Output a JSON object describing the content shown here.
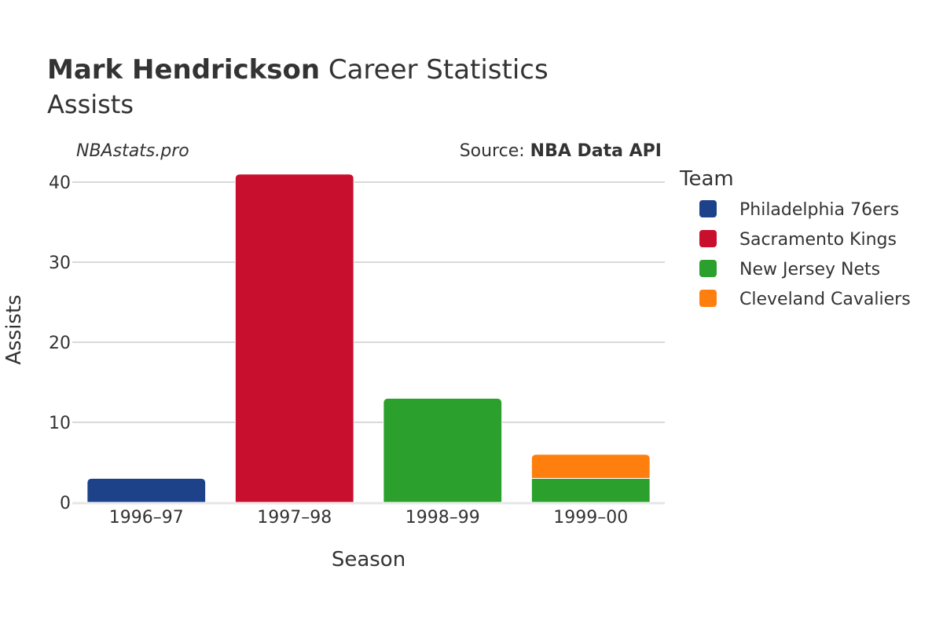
{
  "header": {
    "title_bold": "Mark Hendrickson",
    "title_rest": " Career Statistics",
    "subtitle": "Assists",
    "watermark": "NBAstats.pro",
    "source_prefix": "Source: ",
    "source_name": "NBA Data API"
  },
  "legend": {
    "title": "Team",
    "placement": "right",
    "items": [
      {
        "label": "Philadelphia 76ers",
        "color": "#1d428a"
      },
      {
        "label": "Sacramento Kings",
        "color": "#c8102e"
      },
      {
        "label": "New Jersey Nets",
        "color": "#2ca02c"
      },
      {
        "label": "Cleveland Cavaliers",
        "color": "#ff7f0e"
      }
    ]
  },
  "chart_data": {
    "type": "bar",
    "stacked": true,
    "title": "Mark Hendrickson Career Statistics",
    "subtitle": "Assists",
    "xlabel": "Season",
    "ylabel": "Assists",
    "categories": [
      "1996–97",
      "1997–98",
      "1998–99",
      "1999–00"
    ],
    "ylim": [
      0,
      42
    ],
    "yticks": [
      0,
      10,
      20,
      30,
      40
    ],
    "grid": true,
    "series": [
      {
        "name": "Philadelphia 76ers",
        "color": "#1d428a",
        "values": [
          3,
          0,
          0,
          0
        ]
      },
      {
        "name": "Sacramento Kings",
        "color": "#c8102e",
        "values": [
          0,
          41,
          0,
          0
        ]
      },
      {
        "name": "New Jersey Nets",
        "color": "#2ca02c",
        "values": [
          0,
          0,
          13,
          3
        ]
      },
      {
        "name": "Cleveland Cavaliers",
        "color": "#ff7f0e",
        "values": [
          0,
          0,
          0,
          3
        ]
      }
    ]
  }
}
